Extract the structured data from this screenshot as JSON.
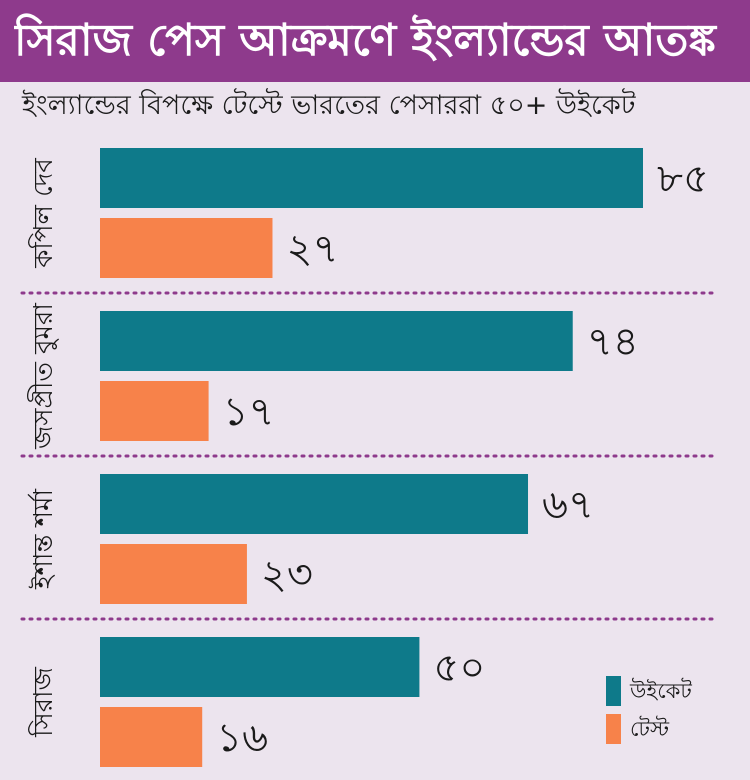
{
  "title": "সিরাজ পেস আক্রমণে ইংল্যান্ডের আতঙ্ক",
  "colors": {
    "title_bg": "#8e3a8c",
    "background": "#ece4ee",
    "wickets": "#0e7a8a",
    "tests": "#f7824a",
    "divider": "#8e3a8c"
  },
  "chart_data": {
    "type": "bar",
    "orientation": "horizontal",
    "title": "সিরাজ পেস আক্রমণে ইংল্যান্ডের আতঙ্ক",
    "subtitle": "ইংল্যান্ডের বিপক্ষে টেস্টে ভারতের পেসাররা ৫০+ উইকেট",
    "categories": [
      "কপিল দেব",
      "জসপ্রীত বুমরা",
      "ইশান্ত শর্মা",
      "সিরাজ"
    ],
    "series": [
      {
        "name": "উইকেট",
        "values": [
          85,
          74,
          67,
          50
        ],
        "labels": [
          "৮৫",
          "৭৪",
          "৬৭",
          "৫০"
        ],
        "color": "#0e7a8a"
      },
      {
        "name": "টেস্ট",
        "values": [
          27,
          17,
          23,
          16
        ],
        "labels": [
          "২৭",
          "১৭",
          "২৩",
          "১৬"
        ],
        "color": "#f7824a"
      }
    ],
    "xlim": [
      0,
      85
    ],
    "grid": false,
    "legend": "bottom-right"
  }
}
